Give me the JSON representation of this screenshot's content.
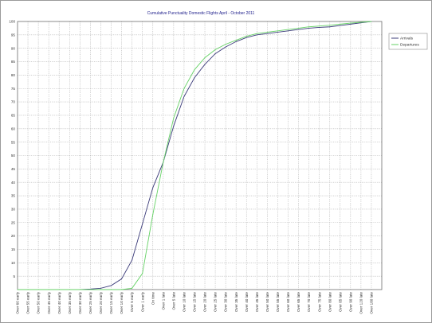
{
  "chart_data": {
    "type": "line",
    "title": "Cumulative Punctuality Domestic Flights April - October 2011",
    "xlabel": "",
    "ylabel": "",
    "ylim": [
      0,
      100
    ],
    "yticks": [
      5,
      10,
      15,
      20,
      25,
      30,
      35,
      40,
      45,
      50,
      55,
      60,
      65,
      70,
      75,
      80,
      85,
      90,
      95,
      100
    ],
    "grid": true,
    "legend_position": "top-right",
    "categories": [
      "Over 60 early",
      "Over 55 early",
      "Over 50 early",
      "Over 45 early",
      "Over 40 early",
      "Over 35 early",
      "Over 30 early",
      "Over 25 early",
      "Over 20 early",
      "Over 15 early",
      "Over 10 early",
      "Over 5 early",
      "Over 1 early",
      "On time",
      "Over 1 late",
      "Over 5 late",
      "Over 10 late",
      "Over 15 late",
      "Over 20 late",
      "Over 25 late",
      "Over 30 late",
      "Over 35 late",
      "Over 40 late",
      "Over 45 late",
      "Over 50 late",
      "Over 55 late",
      "Over 60 late",
      "Over 65 late",
      "Over 70 late",
      "Over 75 late",
      "Over 80 late",
      "Over 85 late",
      "Over 90 late",
      "Over 120 late",
      "Over 180 late"
    ],
    "series": [
      {
        "name": "Arrivals",
        "color": "#3c3c7a",
        "values": [
          0,
          0,
          0,
          0,
          0,
          0,
          0,
          0.2,
          0.5,
          1.5,
          4,
          11,
          24.5,
          38,
          47.5,
          61,
          72,
          79,
          84,
          88,
          90.5,
          92.5,
          94,
          95,
          95.5,
          96,
          96.5,
          97,
          97.5,
          97.8,
          98,
          98.5,
          99,
          99.5,
          100
        ]
      },
      {
        "name": "Departures",
        "color": "#66d266",
        "values": [
          0,
          0,
          0,
          0,
          0,
          0,
          0,
          0,
          0,
          0,
          0,
          0.5,
          6,
          28,
          47.5,
          64,
          75,
          82,
          86.5,
          89.5,
          91.5,
          93,
          94.5,
          95.5,
          96,
          96.5,
          97,
          97.5,
          98,
          98.3,
          98.6,
          99,
          99.4,
          99.7,
          100
        ]
      }
    ]
  }
}
